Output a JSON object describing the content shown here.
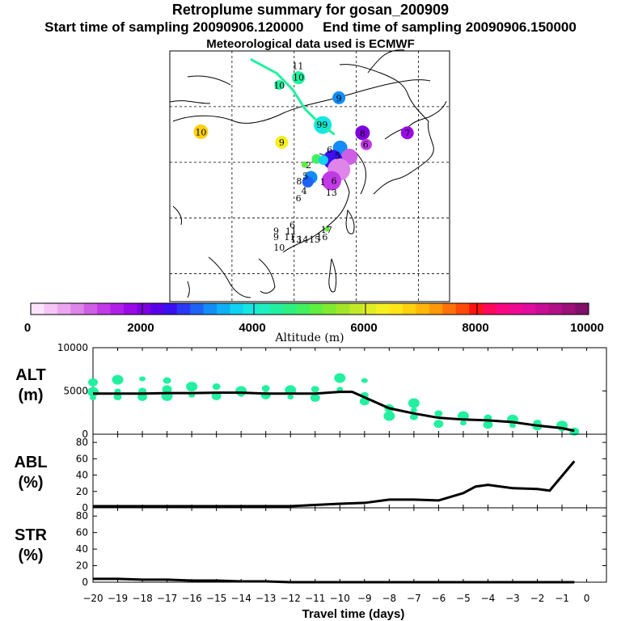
{
  "header": {
    "title": "Retroplume summary for gosan_200909",
    "start_label": "Start time of sampling 20090906.120000",
    "end_label": "End time of sampling 20090906.150000",
    "met_label": "Meteorological data used is ECMWF"
  },
  "colorbar": {
    "label": "Altitude (m)",
    "ticks": [
      "0",
      "2000",
      "4000",
      "6000",
      "8000",
      "10000"
    ],
    "colors": [
      "#fbe4fb",
      "#f5c6f5",
      "#eca6ef",
      "#df85ea",
      "#cf5ee6",
      "#c23ae6",
      "#b01ee8",
      "#9a0ae8",
      "#8000e0",
      "#5a00e8",
      "#3a10f0",
      "#2a38f5",
      "#1e62f5",
      "#148cf5",
      "#10b0f5",
      "#10d2f2",
      "#16e6e2",
      "#1eeec2",
      "#22f0a0",
      "#2ef080",
      "#42f060",
      "#60ee40",
      "#82ea2e",
      "#a2e62a",
      "#c2e828",
      "#e2ec26",
      "#f6ee20",
      "#ffe418",
      "#ffd010",
      "#ffb60a",
      "#ff9808",
      "#ff7208",
      "#ff4a0a",
      "#ff1414",
      "#ff0a5a",
      "#f80880",
      "#ee0a92",
      "#e00c9e",
      "#c80e96",
      "#b21088",
      "#9c1078",
      "#821068"
    ]
  },
  "map": {
    "labels": [
      {
        "text": "11",
        "lat": 47.3,
        "lon": 120.6,
        "color": "#000000"
      },
      {
        "text": "10",
        "lat": 45.3,
        "lon": 120.7,
        "color": "#000000"
      },
      {
        "text": "10",
        "lat": 43.8,
        "lon": 117.6,
        "color": "#000000"
      },
      {
        "text": "10",
        "lat": 35.4,
        "lon": 105.0,
        "color": "#000000"
      },
      {
        "text": "9",
        "lat": 41.5,
        "lon": 127.2,
        "color": "#000000"
      },
      {
        "text": "99",
        "lat": 36.8,
        "lon": 124.5,
        "color": "#000000"
      },
      {
        "text": "9",
        "lat": 33.6,
        "lon": 118.0,
        "color": "#000000"
      },
      {
        "text": "8",
        "lat": 35.2,
        "lon": 131.0,
        "color": "#000000"
      },
      {
        "text": "7",
        "lat": 35.3,
        "lon": 138.2,
        "color": "#000000"
      },
      {
        "text": "6",
        "lat": 33.2,
        "lon": 131.5,
        "color": "#000000"
      },
      {
        "text": "6",
        "lat": 32.3,
        "lon": 125.7,
        "color": "#000000"
      },
      {
        "text": "5",
        "lat": 31.2,
        "lon": 127.0,
        "color": "#000000"
      },
      {
        "text": "2",
        "lat": 29.5,
        "lon": 122.3,
        "color": "#000000"
      },
      {
        "text": "8",
        "lat": 26.6,
        "lon": 120.8,
        "color": "#000000"
      },
      {
        "text": "5",
        "lat": 27.6,
        "lon": 121.8,
        "color": "#000000"
      },
      {
        "text": "6",
        "lat": 26.7,
        "lon": 126.4,
        "color": "#000000"
      },
      {
        "text": "1",
        "lat": 26.5,
        "lon": 124.6,
        "color": "#000000"
      },
      {
        "text": "4",
        "lat": 24.9,
        "lon": 121.6,
        "color": "#000000"
      },
      {
        "text": "6",
        "lat": 23.6,
        "lon": 120.7,
        "color": "#000000"
      },
      {
        "text": "13",
        "lat": 24.6,
        "lon": 126.0,
        "color": "#000000"
      },
      {
        "text": "6",
        "lat": 18.8,
        "lon": 119.7,
        "color": "#000000"
      },
      {
        "text": "9",
        "lat": 17.7,
        "lon": 117.1,
        "color": "#000000"
      },
      {
        "text": "11",
        "lat": 17.6,
        "lon": 119.5,
        "color": "#000000"
      },
      {
        "text": "9",
        "lat": 16.6,
        "lon": 117.1,
        "color": "#000000"
      },
      {
        "text": "11",
        "lat": 16.6,
        "lon": 119.3,
        "color": "#000000"
      },
      {
        "text": "13",
        "lat": 16.2,
        "lon": 120.3,
        "color": "#000000"
      },
      {
        "text": "14",
        "lat": 16.2,
        "lon": 121.4,
        "color": "#000000"
      },
      {
        "text": "15",
        "lat": 16.2,
        "lon": 123.3,
        "color": "#000000"
      },
      {
        "text": "16",
        "lat": 16.6,
        "lon": 124.5,
        "color": "#000000"
      },
      {
        "text": "17",
        "lat": 17.9,
        "lon": 125.2,
        "color": "#000000"
      },
      {
        "text": "10",
        "lat": 14.7,
        "lon": 117.6,
        "color": "#000000"
      }
    ],
    "blobs": [
      {
        "lat": 45.2,
        "lon": 120.7,
        "r": 8,
        "color": "#22f0a0"
      },
      {
        "lat": 43.9,
        "lon": 117.6,
        "r": 6,
        "color": "#22f0a0"
      },
      {
        "lat": 35.5,
        "lon": 105.0,
        "r": 9,
        "color": "#ffd010"
      },
      {
        "lat": 41.6,
        "lon": 127.2,
        "r": 8,
        "color": "#148cf5"
      },
      {
        "lat": 36.7,
        "lon": 124.6,
        "r": 11,
        "color": "#16e6e2"
      },
      {
        "lat": 33.6,
        "lon": 118.0,
        "r": 8,
        "color": "#f6ee20"
      },
      {
        "lat": 35.3,
        "lon": 131.0,
        "r": 9,
        "color": "#8000e0"
      },
      {
        "lat": 35.3,
        "lon": 138.2,
        "r": 8,
        "color": "#9a0ae8"
      },
      {
        "lat": 33.2,
        "lon": 131.6,
        "r": 7,
        "color": "#c23ae6"
      },
      {
        "lat": 32.6,
        "lon": 127.4,
        "r": 9,
        "color": "#148cf5"
      },
      {
        "lat": 31.0,
        "lon": 128.9,
        "r": 10,
        "color": "#cf5ee6"
      },
      {
        "lat": 30.5,
        "lon": 126.2,
        "r": 12,
        "color": "#3a10f0"
      },
      {
        "lat": 28.7,
        "lon": 127.2,
        "r": 14,
        "color": "#df85ea"
      },
      {
        "lat": 26.7,
        "lon": 126.0,
        "r": 12,
        "color": "#c23ae6"
      },
      {
        "lat": 27.3,
        "lon": 122.7,
        "r": 8,
        "color": "#148cf5"
      },
      {
        "lat": 26.5,
        "lon": 122.2,
        "r": 7,
        "color": "#1e62f5"
      },
      {
        "lat": 30.6,
        "lon": 123.6,
        "r": 6,
        "color": "#42f060"
      },
      {
        "lat": 30.4,
        "lon": 124.7,
        "r": 6,
        "color": "#10d2f2"
      },
      {
        "lat": 29.6,
        "lon": 121.7,
        "r": 4,
        "color": "#60ee40"
      },
      {
        "lat": 18.0,
        "lon": 125.3,
        "r": 3,
        "color": "#60ee40"
      }
    ],
    "track": [
      [
        48.5,
        113.0
      ],
      [
        46.0,
        117.2
      ],
      [
        43.0,
        119.8
      ],
      [
        39.5,
        121.8
      ],
      [
        36.8,
        124.3
      ],
      [
        35.0,
        126.5
      ]
    ],
    "track_color": "#22f0a0"
  },
  "chart_data": [
    {
      "type": "line",
      "panel": "altitude",
      "ylabel_line1": "ALT",
      "ylabel_line2": "(m)",
      "ylim": [
        0,
        10000
      ],
      "yticks": [
        "0",
        "5000",
        "10000"
      ],
      "x": [
        -20,
        -19,
        -18,
        -17,
        -16,
        -15,
        -14,
        -13,
        -12,
        -11,
        -10,
        -9.5,
        -8,
        -7,
        -6,
        -5,
        -4,
        -3,
        -2,
        -1,
        -0.5
      ],
      "values": [
        4700,
        4700,
        4700,
        4750,
        4750,
        4800,
        4800,
        4700,
        4700,
        4700,
        4900,
        4900,
        3000,
        2400,
        1900,
        1700,
        1600,
        1400,
        1000,
        700,
        400
      ],
      "scatter": {
        "color": "#22f0a0",
        "points": [
          [
            -20,
            4200
          ],
          [
            -20,
            4900
          ],
          [
            -20,
            6000
          ],
          [
            -19,
            4300
          ],
          [
            -19,
            5000
          ],
          [
            -19,
            6300
          ],
          [
            -18,
            4300
          ],
          [
            -18,
            5000
          ],
          [
            -18,
            6400
          ],
          [
            -17,
            4400
          ],
          [
            -17,
            5200
          ],
          [
            -17,
            6200
          ],
          [
            -16,
            4500
          ],
          [
            -16,
            5500
          ],
          [
            -15,
            4400
          ],
          [
            -15,
            5500
          ],
          [
            -14,
            4600
          ],
          [
            -14,
            5000
          ],
          [
            -13,
            4500
          ],
          [
            -13,
            5300
          ],
          [
            -12,
            4300
          ],
          [
            -12,
            5100
          ],
          [
            -11,
            4200
          ],
          [
            -11,
            5200
          ],
          [
            -10,
            5200
          ],
          [
            -10,
            6500
          ],
          [
            -9,
            3800
          ],
          [
            -9,
            4500
          ],
          [
            -9,
            6200
          ],
          [
            -8,
            2100
          ],
          [
            -8,
            3000
          ],
          [
            -7,
            2000
          ],
          [
            -7,
            2800
          ],
          [
            -7,
            3600
          ],
          [
            -6,
            1200
          ],
          [
            -6,
            2400
          ],
          [
            -5,
            1300
          ],
          [
            -5,
            2100
          ],
          [
            -4,
            1100
          ],
          [
            -4,
            1900
          ],
          [
            -3,
            1000
          ],
          [
            -3,
            1700
          ],
          [
            -2,
            900
          ],
          [
            -2,
            1300
          ],
          [
            -1,
            600
          ],
          [
            -1,
            1000
          ],
          [
            -0.5,
            300
          ]
        ]
      }
    },
    {
      "type": "line",
      "panel": "abl",
      "ylabel_line1": "ABL",
      "ylabel_line2": "(%)",
      "ylim": [
        0,
        90
      ],
      "yticks": [
        "0",
        "20",
        "40",
        "60",
        "80"
      ],
      "x": [
        -20,
        -18,
        -16,
        -14,
        -12,
        -10,
        -9,
        -8,
        -7,
        -6,
        -5,
        -4.5,
        -4,
        -3,
        -2,
        -1.5,
        -0.5
      ],
      "values": [
        2,
        2,
        2,
        2,
        2,
        5,
        6,
        10,
        10,
        9,
        18,
        26,
        28,
        24,
        23,
        21,
        57
      ]
    },
    {
      "type": "line",
      "panel": "str",
      "ylabel_line1": "STR",
      "ylabel_line2": "(%)",
      "ylim": [
        0,
        90
      ],
      "yticks": [
        "0",
        "20",
        "40",
        "60",
        "80"
      ],
      "x": [
        -20,
        -19,
        -18,
        -17,
        -16,
        -15,
        -14,
        -13,
        -12,
        -11,
        -10,
        -9,
        -8,
        -7,
        -6,
        -5,
        -4,
        -3,
        -2,
        -1,
        -0.5
      ],
      "values": [
        4,
        4,
        3,
        3,
        2,
        2,
        1,
        1,
        0,
        0,
        0,
        0,
        0,
        0,
        0,
        0,
        0,
        0,
        0,
        0,
        0
      ]
    }
  ],
  "xaxis": {
    "label": "Travel time (days)",
    "ticks": [
      "−20",
      "−19",
      "−18",
      "−17",
      "−16",
      "−15",
      "−14",
      "−13",
      "−12",
      "−11",
      "−10",
      "−9",
      "−8",
      "−7",
      "−6",
      "−5",
      "−4",
      "−3",
      "−2",
      "−1",
      "0"
    ]
  }
}
